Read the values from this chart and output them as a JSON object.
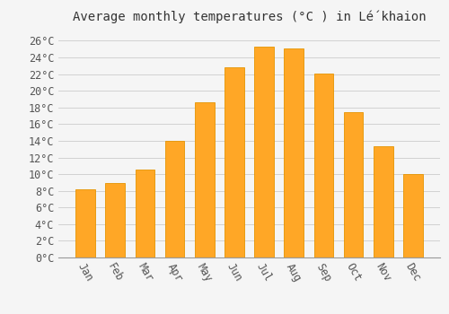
{
  "title": "Average monthly temperatures (°C ) in Lé́khaion",
  "months": [
    "Jan",
    "Feb",
    "Mar",
    "Apr",
    "May",
    "Jun",
    "Jul",
    "Aug",
    "Sep",
    "Oct",
    "Nov",
    "Dec"
  ],
  "values": [
    8.2,
    8.9,
    10.6,
    14.0,
    18.6,
    22.8,
    25.3,
    25.1,
    22.1,
    17.4,
    13.3,
    10.0
  ],
  "bar_color": "#FFA726",
  "bar_edge_color": "#E59400",
  "background_color": "#F5F5F5",
  "grid_color": "#CCCCCC",
  "yticks": [
    0,
    2,
    4,
    6,
    8,
    10,
    12,
    14,
    16,
    18,
    20,
    22,
    24,
    26
  ],
  "ylim": [
    0,
    27.5
  ],
  "title_fontsize": 10,
  "tick_fontsize": 8.5,
  "font_family": "monospace",
  "bar_width": 0.65
}
